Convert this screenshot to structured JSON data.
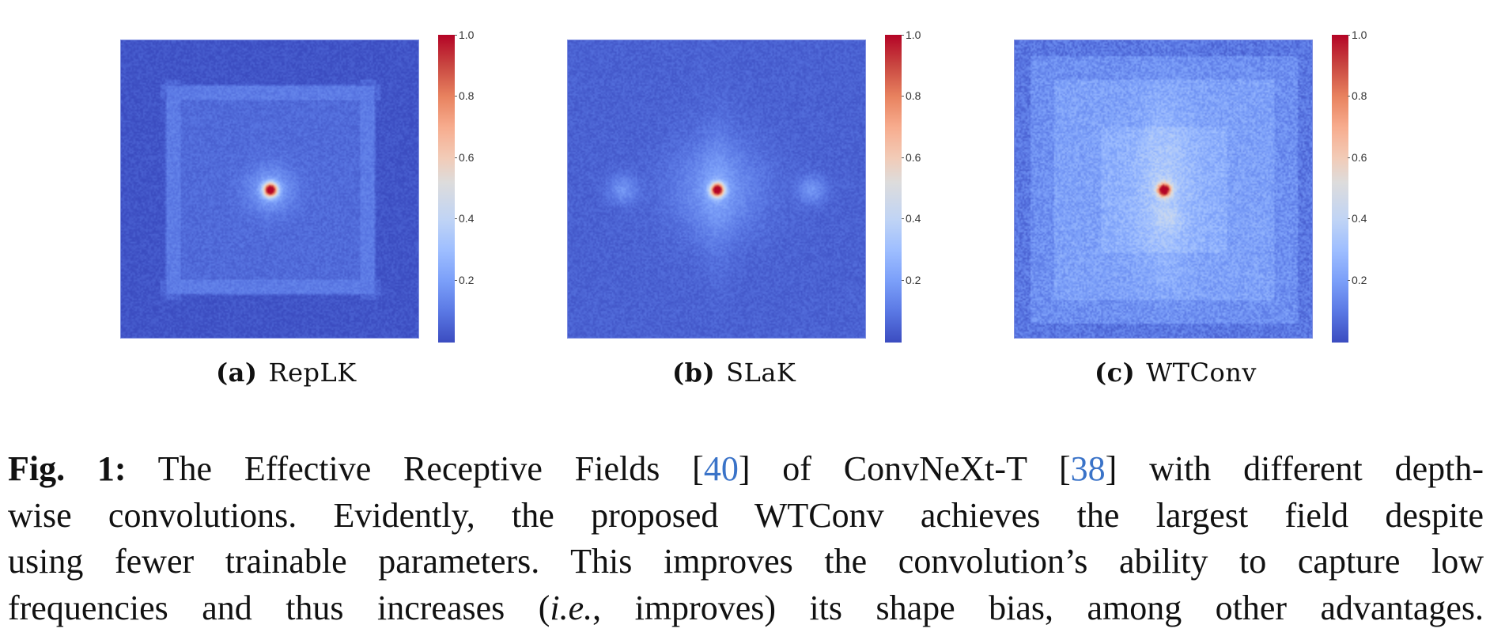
{
  "figure": {
    "panels": [
      {
        "id": "a",
        "tag": "(a)",
        "name": "RepLK"
      },
      {
        "id": "b",
        "tag": "(b)",
        "name": "SLaK"
      },
      {
        "id": "c",
        "tag": "(c)",
        "name": "WTConv"
      }
    ],
    "colorbar": {
      "colormap": "coolwarm",
      "ticks": [
        "1.0",
        "0.8",
        "0.6",
        "0.4",
        "0.2"
      ],
      "range": [
        0.0,
        1.0
      ]
    }
  },
  "chart_data": [
    {
      "type": "heatmap",
      "title": "(a) RepLK",
      "description": "Effective receptive field; bright peak at center (~0.8–1.0), faint square halo of low values (~0.15–0.25) around center, background ~0.02",
      "center_peak": 1.0,
      "background_level": 0.02,
      "colorbar_ticks": [
        0.2,
        0.4,
        0.6,
        0.8,
        1.0
      ],
      "vrange": [
        0.0,
        1.0
      ]
    },
    {
      "type": "heatmap",
      "title": "(b) SLaK",
      "description": "Effective receptive field; center peak (~0.8–1.0), horizontal side lobes and vertical extent with low values (~0.15–0.25), background ~0.05",
      "center_peak": 1.0,
      "background_level": 0.05,
      "colorbar_ticks": [
        0.2,
        0.4,
        0.6,
        0.8,
        1.0
      ],
      "vrange": [
        0.0,
        1.0
      ]
    },
    {
      "type": "heatmap",
      "title": "(c) WTConv",
      "description": "Effective receptive field; center peak (~0.8), large nested square regions of elevated values (~0.2–0.35) spanning most of the field, background ~0.1",
      "center_peak": 0.85,
      "background_level": 0.1,
      "colorbar_ticks": [
        0.2,
        0.4,
        0.6,
        0.8,
        1.0
      ],
      "vrange": [
        0.0,
        1.0
      ]
    }
  ],
  "caption": {
    "label": "Fig. 1:",
    "lines": [
      [
        {
          "t": " The Effective Receptive Fields ["
        },
        {
          "t": "40",
          "cite": true
        },
        {
          "t": "] of ConvNeXt-T ["
        },
        {
          "t": "38",
          "cite": true
        },
        {
          "t": "] with different depth-"
        }
      ],
      [
        {
          "t": "wise convolutions. Evidently, the proposed WTConv achieves the largest field despite"
        }
      ],
      [
        {
          "t": "using fewer trainable parameters. This improves the convolution’s ability to capture low"
        }
      ],
      [
        {
          "t": "frequencies and thus increases ("
        },
        {
          "t": "i.e.",
          "italic": true
        },
        {
          "t": ", improves) its shape bias, among other advantages."
        }
      ]
    ]
  }
}
